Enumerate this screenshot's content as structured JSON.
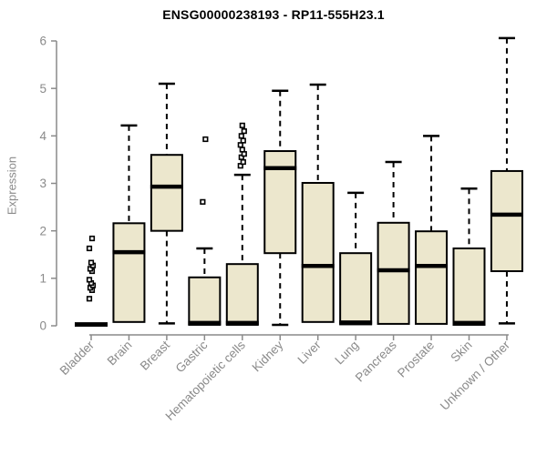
{
  "chart_data": {
    "type": "boxplot",
    "title": "ENSG00000238193 - RP11-555H23.1",
    "ylabel": "Expression",
    "xlabel": "",
    "ylim": [
      0,
      6
    ],
    "yticks": [
      0,
      1,
      2,
      3,
      4,
      5,
      6
    ],
    "grid": false,
    "legend": "none",
    "categories": [
      "Bladder",
      "Brain",
      "Breast",
      "Gastric",
      "Hematopoietic cells",
      "Kidney",
      "Liver",
      "Lung",
      "Pancreas",
      "Prostate",
      "Skin",
      "Unknown / Other"
    ],
    "series": [
      {
        "name": "Bladder",
        "low": 0.0,
        "q1": 0.0,
        "median": 0.03,
        "q3": 0.05,
        "high": 0.05,
        "outliers": [
          0.57,
          0.75,
          0.8,
          0.85,
          0.9,
          0.97,
          1.15,
          1.2,
          1.27,
          1.33,
          1.63,
          1.84
        ]
      },
      {
        "name": "Brain",
        "low": 0.08,
        "q1": 0.08,
        "median": 1.55,
        "q3": 2.16,
        "high": 4.22,
        "outliers": []
      },
      {
        "name": "Breast",
        "low": 0.05,
        "q1": 2.0,
        "median": 2.93,
        "q3": 3.6,
        "high": 5.1,
        "outliers": []
      },
      {
        "name": "Gastric",
        "low": 0.02,
        "q1": 0.02,
        "median": 0.06,
        "q3": 1.02,
        "high": 1.63,
        "outliers": [
          2.61,
          3.93
        ]
      },
      {
        "name": "Hematopoietic cells",
        "low": 0.02,
        "q1": 0.02,
        "median": 0.06,
        "q3": 1.3,
        "high": 3.18,
        "outliers": [
          3.37,
          3.45,
          3.55,
          3.62,
          3.71,
          3.81,
          3.9,
          4.0,
          4.1,
          4.22
        ]
      },
      {
        "name": "Kidney",
        "low": 0.02,
        "q1": 1.53,
        "median": 3.32,
        "q3": 3.68,
        "high": 4.95,
        "outliers": []
      },
      {
        "name": "Liver",
        "low": 0.08,
        "q1": 0.08,
        "median": 1.26,
        "q3": 3.01,
        "high": 5.08,
        "outliers": []
      },
      {
        "name": "Lung",
        "low": 0.03,
        "q1": 0.03,
        "median": 0.07,
        "q3": 1.53,
        "high": 2.8,
        "outliers": []
      },
      {
        "name": "Pancreas",
        "low": 0.04,
        "q1": 0.04,
        "median": 1.17,
        "q3": 2.17,
        "high": 3.45,
        "outliers": []
      },
      {
        "name": "Prostate",
        "low": 0.04,
        "q1": 0.04,
        "median": 1.26,
        "q3": 1.99,
        "high": 4.0,
        "outliers": []
      },
      {
        "name": "Skin",
        "low": 0.02,
        "q1": 0.02,
        "median": 0.06,
        "q3": 1.63,
        "high": 2.89,
        "outliers": []
      },
      {
        "name": "Unknown / Other",
        "low": 0.05,
        "q1": 1.15,
        "median": 2.34,
        "q3": 3.26,
        "high": 6.06,
        "outliers": []
      }
    ],
    "colors": {
      "background": "#ffffff",
      "box_fill": "#ece7cd",
      "box_border": "#000000",
      "median": "#000000",
      "whisker": "#000000",
      "outlier_stroke": "#000000",
      "outlier_fill": "#ffffff",
      "axis": "#8a8a8a",
      "tick_label": "#8a8a8a",
      "title": "#000000"
    }
  }
}
